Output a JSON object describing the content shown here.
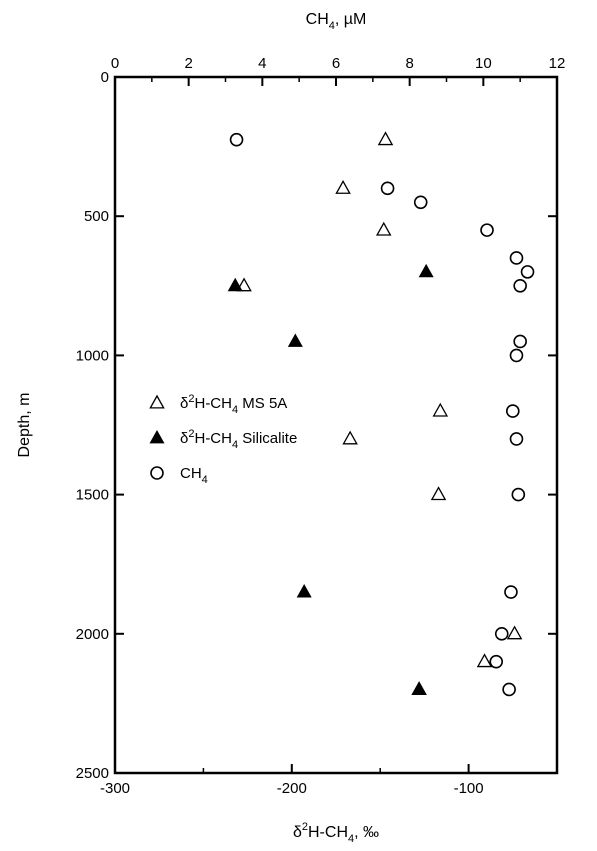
{
  "chart_data": {
    "type": "scatter",
    "x_bottom": {
      "label_base": "δ",
      "label_sup": "2",
      "label_mid": "H-CH",
      "label_sub": "4",
      "label_end": ", ‰",
      "range": [
        -300,
        -50
      ],
      "ticks": [
        -300,
        -200,
        -100
      ],
      "tick_labels": [
        "-300",
        "-200",
        "-100"
      ]
    },
    "x_top": {
      "label_main": "CH",
      "label_sub": "4",
      "label_end": ", µM",
      "range": [
        0,
        12
      ],
      "ticks": [
        0,
        2,
        4,
        6,
        8,
        10,
        12
      ],
      "tick_labels": [
        "0",
        "2",
        "4",
        "6",
        "8",
        "10",
        "12"
      ]
    },
    "y": {
      "label": "Depth, m",
      "range": [
        0,
        2500
      ],
      "inverted": true,
      "ticks": [
        0,
        500,
        1000,
        1500,
        2000,
        2500
      ],
      "tick_labels": [
        "0",
        "500",
        "1000",
        "1500",
        "2000",
        "2500"
      ]
    },
    "grid": false,
    "legend_position": "left-middle",
    "series": [
      {
        "key": "ms5a",
        "legend_parts": [
          "δ",
          "2",
          "H-CH",
          "4",
          " MS 5A"
        ],
        "marker": "open-triangle",
        "axis": "bottom",
        "points": [
          {
            "x": -147,
            "y": 225
          },
          {
            "x": -171,
            "y": 400
          },
          {
            "x": -148,
            "y": 550
          },
          {
            "x": -227,
            "y": 750
          },
          {
            "x": -116,
            "y": 1200
          },
          {
            "x": -167,
            "y": 1300
          },
          {
            "x": -117,
            "y": 1500
          },
          {
            "x": -74,
            "y": 2000
          },
          {
            "x": -91,
            "y": 2100
          },
          {
            "x": -128,
            "y": 2200
          }
        ]
      },
      {
        "key": "silicalite",
        "legend_parts": [
          "δ",
          "2",
          "H-CH",
          "4",
          " Silicalite"
        ],
        "marker": "filled-triangle",
        "axis": "bottom",
        "points": [
          {
            "x": -124,
            "y": 700
          },
          {
            "x": -232,
            "y": 750
          },
          {
            "x": -198,
            "y": 950
          },
          {
            "x": -193,
            "y": 1850
          },
          {
            "x": -128,
            "y": 2200
          }
        ]
      },
      {
        "key": "ch4",
        "legend_parts": [
          "CH",
          "4",
          "",
          "",
          ""
        ],
        "marker": "open-circle",
        "axis": "top",
        "points": [
          {
            "x": 3.3,
            "y": 225
          },
          {
            "x": 7.4,
            "y": 400
          },
          {
            "x": 8.3,
            "y": 450
          },
          {
            "x": 10.1,
            "y": 550
          },
          {
            "x": 10.9,
            "y": 650
          },
          {
            "x": 11.2,
            "y": 700
          },
          {
            "x": 11.0,
            "y": 750
          },
          {
            "x": 11.0,
            "y": 950
          },
          {
            "x": 10.9,
            "y": 1000
          },
          {
            "x": 10.8,
            "y": 1200
          },
          {
            "x": 10.9,
            "y": 1300
          },
          {
            "x": 10.95,
            "y": 1500
          },
          {
            "x": 10.75,
            "y": 1850
          },
          {
            "x": 10.5,
            "y": 2000
          },
          {
            "x": 10.35,
            "y": 2100
          },
          {
            "x": 10.7,
            "y": 2200
          }
        ]
      }
    ]
  }
}
